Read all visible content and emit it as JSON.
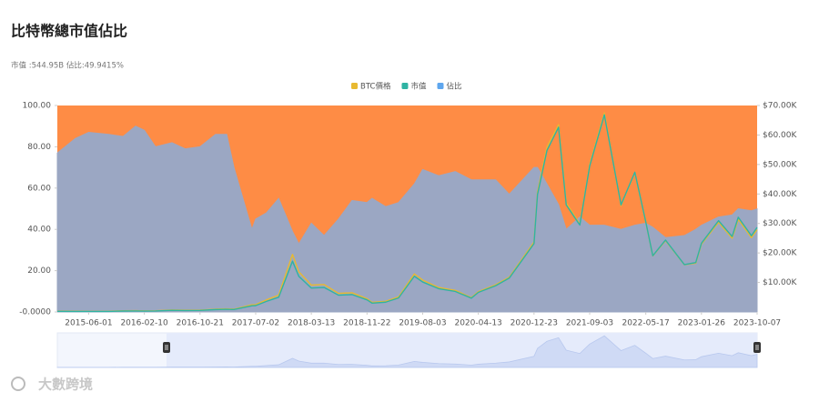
{
  "chart_data": {
    "type": "area_line",
    "title": "比特幣總市值佔比",
    "subtitle": "市值 :544.95B 佔比:49.9415%",
    "watermark": "大數跨境",
    "plot_color": "#fe8c45",
    "x": [
      "2015-01-09",
      "2015-04-01",
      "2015-06-01",
      "2015-09-01",
      "2015-11-05",
      "2016-01-01",
      "2016-02-10",
      "2016-04-01",
      "2016-06-15",
      "2016-08-15",
      "2016-10-21",
      "2016-12-31",
      "2017-02-20",
      "2017-03-25",
      "2017-06-15",
      "2017-07-02",
      "2017-08-20",
      "2017-10-15",
      "2017-12-17",
      "2018-01-15",
      "2018-03-13",
      "2018-05-10",
      "2018-07-15",
      "2018-09-15",
      "2018-11-22",
      "2018-12-15",
      "2019-02-15",
      "2019-04-15",
      "2019-06-26",
      "2019-08-03",
      "2019-10-15",
      "2019-12-30",
      "2020-03-12",
      "2020-04-13",
      "2020-07-01",
      "2020-09-01",
      "2020-12-23",
      "2021-01-08",
      "2021-02-20",
      "2021-04-14",
      "2021-05-19",
      "2021-07-20",
      "2021-09-03",
      "2021-11-09",
      "2022-01-24",
      "2022-03-28",
      "2022-05-17",
      "2022-06-18",
      "2022-08-15",
      "2022-11-09",
      "2022-12-31",
      "2023-01-26",
      "2023-04-14",
      "2023-06-15",
      "2023-07-13",
      "2023-09-11",
      "2023-10-07"
    ],
    "xlim": [
      "2015-01-09",
      "2023-10-07"
    ],
    "xticks": [
      "2015-06-01",
      "2016-02-10",
      "2016-10-21",
      "2017-07-02",
      "2018-03-13",
      "2018-11-22",
      "2019-08-03",
      "2020-04-13",
      "2020-12-23",
      "2021-09-03",
      "2022-05-17",
      "2023-01-26",
      "2023-10-07"
    ],
    "ylim": [
      0,
      100
    ],
    "yticks": [
      {
        "value": 0,
        "label": "-0.0000"
      },
      {
        "value": 20,
        "label": "20.00"
      },
      {
        "value": 40,
        "label": "40.00"
      },
      {
        "value": 60,
        "label": "60.00"
      },
      {
        "value": 80,
        "label": "80.00"
      },
      {
        "value": 100,
        "label": "100.00"
      }
    ],
    "y2lim": [
      0,
      70000
    ],
    "y2ticks": [
      {
        "value": 10000,
        "label": "$10.00K"
      },
      {
        "value": 20000,
        "label": "$20.00K"
      },
      {
        "value": 30000,
        "label": "$30.00K"
      },
      {
        "value": 40000,
        "label": "$40.00K"
      },
      {
        "value": 50000,
        "label": "$50.00K"
      },
      {
        "value": 60000,
        "label": "$60.00K"
      },
      {
        "value": 70000,
        "label": "$70.00K"
      }
    ],
    "y3lim": [
      0,
      1330
    ],
    "series": [
      {
        "name": "BTC價格",
        "color": "#e8b931",
        "axis": "y2",
        "kind": "line",
        "values": [
          280,
          245,
          225,
          230,
          400,
          430,
          380,
          415,
          690,
          580,
          630,
          960,
          1050,
          960,
          2450,
          2500,
          4100,
          5700,
          19500,
          13600,
          9100,
          9300,
          6300,
          6500,
          4500,
          3250,
          3600,
          5100,
          12900,
          10800,
          8300,
          7300,
          4900,
          6900,
          9200,
          11800,
          23700,
          40700,
          55900,
          63500,
          37000,
          29800,
          50000,
          67500,
          36000,
          47300,
          30400,
          19000,
          24200,
          16000,
          16500,
          23000,
          30400,
          25000,
          31400,
          25200,
          27900
        ]
      },
      {
        "name": "市值",
        "color": "#2fb3a3",
        "axis": "y3",
        "kind": "line",
        "values": [
          3.8,
          3.4,
          3.2,
          3.3,
          5.8,
          6.4,
          5.7,
          6.3,
          10.8,
          9.1,
          10,
          15.4,
          17,
          15.6,
          40,
          41,
          68,
          95,
          327,
          229,
          154,
          158,
          108,
          112,
          78,
          57,
          63,
          90,
          230,
          193,
          150,
          132,
          89,
          126,
          169,
          218,
          440,
          757,
          1040,
          1190,
          690,
          560,
          940,
          1270,
          690,
          900,
          580,
          362,
          463,
          305,
          318,
          443,
          588,
          486,
          610,
          491,
          544.95
        ]
      },
      {
        "name": "佔比",
        "color": "#5ea6ee",
        "fill_color": "#9ba7c3",
        "axis": "y",
        "kind": "area",
        "values": [
          77,
          84,
          87,
          86,
          85,
          90,
          88,
          80,
          82,
          79,
          80,
          86,
          86,
          70,
          40,
          45,
          48,
          55,
          39,
          33,
          43,
          37,
          45,
          54,
          53,
          55,
          51,
          53,
          62,
          69,
          66,
          68,
          64,
          64,
          64,
          57,
          70,
          70,
          62,
          52,
          40,
          46,
          42,
          42,
          40,
          42,
          43,
          41,
          36,
          37,
          40,
          42,
          46,
          47,
          50,
          49,
          49.94
        ]
      }
    ]
  }
}
